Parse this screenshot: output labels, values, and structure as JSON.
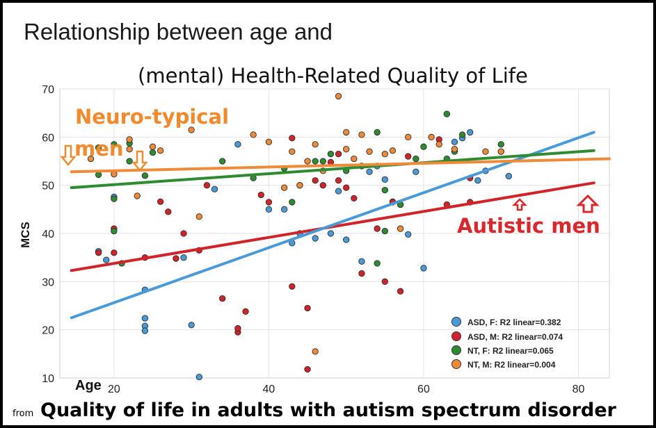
{
  "chart_data": {
    "type": "scatter",
    "title": "Relationship between age and",
    "subtitle": "(mental) Health-Related Quality of Life",
    "xlabel": "Age",
    "ylabel": "MCS",
    "xlim": [
      13,
      84
    ],
    "ylim": [
      10,
      70
    ],
    "xticks": [
      20,
      40,
      60,
      80
    ],
    "yticks": [
      10,
      20,
      30,
      40,
      50,
      60,
      70
    ],
    "series": [
      {
        "name": "ASD, F: R2 linear=0.382",
        "color": "#4a9ad8",
        "fit": [
          [
            14.5,
            22.5
          ],
          [
            82,
            61
          ]
        ],
        "points": [
          [
            18,
            36.3
          ],
          [
            19,
            34.5
          ],
          [
            20,
            47.6
          ],
          [
            24,
            28.3
          ],
          [
            24,
            22.4
          ],
          [
            24,
            20.8
          ],
          [
            24,
            19.8
          ],
          [
            29,
            35
          ],
          [
            30,
            21
          ],
          [
            31,
            10.2
          ],
          [
            33,
            49.2
          ],
          [
            36,
            58.5
          ],
          [
            40,
            45
          ],
          [
            42,
            45
          ],
          [
            43,
            38
          ],
          [
            44,
            40
          ],
          [
            46,
            39
          ],
          [
            48,
            40
          ],
          [
            49,
            48.8
          ],
          [
            50,
            38.7
          ],
          [
            52,
            34.2
          ],
          [
            53,
            52.8
          ],
          [
            54,
            54
          ],
          [
            55,
            51.2
          ],
          [
            56,
            46.6
          ],
          [
            57,
            46
          ],
          [
            58,
            39.8
          ],
          [
            59,
            52.8
          ],
          [
            60,
            32.8
          ],
          [
            64,
            59
          ],
          [
            65,
            59.8
          ],
          [
            66,
            61
          ],
          [
            67,
            51
          ],
          [
            68,
            53
          ],
          [
            71,
            51.9
          ]
        ]
      },
      {
        "name": "ASD, M: R2 linear=0.074",
        "color": "#d0232a",
        "fit": [
          [
            14.5,
            32.3
          ],
          [
            82,
            50.5
          ]
        ],
        "points": [
          [
            18,
            36
          ],
          [
            20,
            36
          ],
          [
            20,
            41
          ],
          [
            24,
            35
          ],
          [
            26,
            46.6
          ],
          [
            27,
            44.5
          ],
          [
            28,
            34.8
          ],
          [
            29,
            40
          ],
          [
            31,
            36.5
          ],
          [
            32,
            50
          ],
          [
            34,
            26.5
          ],
          [
            36,
            19.5
          ],
          [
            36,
            20.3
          ],
          [
            37,
            23.8
          ],
          [
            39,
            48
          ],
          [
            40,
            46.5
          ],
          [
            43,
            59.8
          ],
          [
            43,
            29
          ],
          [
            44,
            50
          ],
          [
            45,
            24.5
          ],
          [
            45,
            11.8
          ],
          [
            46,
            51
          ],
          [
            47,
            50
          ],
          [
            48,
            54.8
          ],
          [
            49,
            51
          ],
          [
            49,
            56.5
          ],
          [
            50,
            49.5
          ],
          [
            51,
            47.3
          ],
          [
            52,
            31.7
          ],
          [
            54,
            41
          ],
          [
            55,
            30
          ],
          [
            56,
            46.5
          ],
          [
            57,
            28
          ],
          [
            58,
            56
          ],
          [
            62,
            59.5
          ],
          [
            63,
            46
          ],
          [
            66,
            46.5
          ],
          [
            66,
            51.5
          ],
          [
            70,
            57
          ]
        ]
      },
      {
        "name": "NT, F: R2 linear=0.065",
        "color": "#2e8b32",
        "fit": [
          [
            14.5,
            49.5
          ],
          [
            82,
            57.2
          ]
        ],
        "points": [
          [
            18,
            57.8
          ],
          [
            18,
            52.2
          ],
          [
            20,
            58.5
          ],
          [
            20,
            40.5
          ],
          [
            20,
            47.2
          ],
          [
            21,
            33.8
          ],
          [
            22,
            55
          ],
          [
            22,
            58.7
          ],
          [
            24,
            52
          ],
          [
            25,
            56.8
          ],
          [
            34,
            55
          ],
          [
            38,
            51.5
          ],
          [
            42,
            53.5
          ],
          [
            43,
            46.5
          ],
          [
            46,
            55
          ],
          [
            47,
            55
          ],
          [
            48,
            56.5
          ],
          [
            50,
            53
          ],
          [
            52,
            54
          ],
          [
            54,
            61
          ],
          [
            54,
            33.8
          ],
          [
            55,
            49
          ],
          [
            55,
            40.5
          ],
          [
            57,
            46
          ],
          [
            59,
            55.5
          ],
          [
            60,
            58
          ],
          [
            63,
            64.8
          ],
          [
            63,
            55.5
          ],
          [
            64,
            57
          ],
          [
            65,
            60.5
          ],
          [
            70,
            58.5
          ]
        ]
      },
      {
        "name": "NT, M: R2 linear=0.004",
        "color": "#ee8a38",
        "fit": [
          [
            14.5,
            52.8
          ],
          [
            84,
            55.5
          ]
        ],
        "points": [
          [
            17,
            55.5
          ],
          [
            20,
            52.3
          ],
          [
            22,
            59.5
          ],
          [
            22,
            57.5
          ],
          [
            23,
            47.8
          ],
          [
            25,
            58
          ],
          [
            26,
            57.2
          ],
          [
            30,
            61.5
          ],
          [
            31,
            43.5
          ],
          [
            38,
            60.5
          ],
          [
            40,
            59
          ],
          [
            42,
            49.5
          ],
          [
            43,
            57
          ],
          [
            44,
            50
          ],
          [
            45,
            55
          ],
          [
            46,
            58.5
          ],
          [
            46,
            15.5
          ],
          [
            47,
            53
          ],
          [
            49,
            68.5
          ],
          [
            50,
            61
          ],
          [
            50,
            57.5
          ],
          [
            51,
            55.5
          ],
          [
            52,
            60.5
          ],
          [
            53,
            57
          ],
          [
            55,
            56.5
          ],
          [
            56,
            57.2
          ],
          [
            57,
            41
          ],
          [
            58,
            60
          ],
          [
            61,
            60
          ],
          [
            62,
            58.5
          ],
          [
            64,
            57.5
          ],
          [
            68,
            57
          ],
          [
            70,
            57
          ]
        ]
      }
    ],
    "annotations": {
      "nt_label_line1": "Neuro-typical",
      "nt_label_line2": "men",
      "asd_label": "Autistic men"
    }
  },
  "source": {
    "prefix": "from",
    "text": "Quality of life in adults with autism spectrum disorder"
  },
  "colors": {
    "asd_f": "#4a9ad8",
    "asd_m": "#d0232a",
    "nt_f": "#2e8b32",
    "nt_m": "#ee8a38",
    "annotation_nt": "#f08a2c",
    "annotation_asd": "#d8282c"
  },
  "icons": {
    "nt_arrow": "down-arrow-icon",
    "asd_arrow": "up-arrow-icon"
  }
}
